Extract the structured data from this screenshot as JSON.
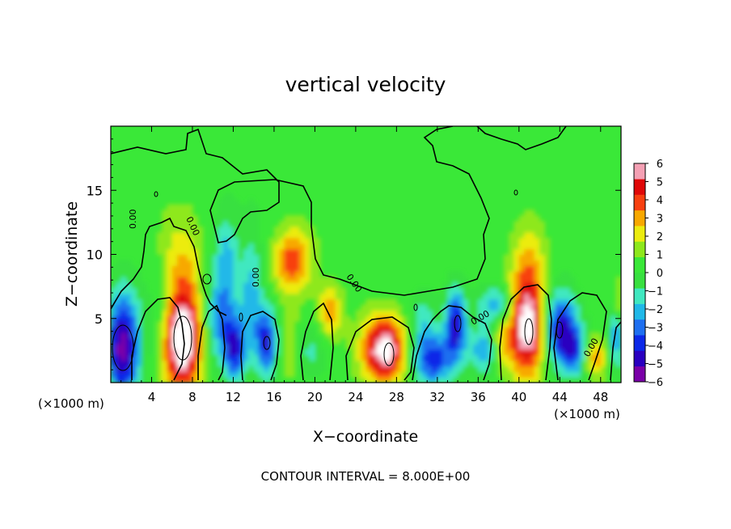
{
  "chart_data": {
    "type": "heatmap",
    "title": "vertical velocity",
    "xlabel": "X−coordinate",
    "ylabel": "Z−coordinate",
    "x_unit_left": "(×1000 m)",
    "x_unit_right": "(×1000 m)",
    "xlim": [
      0,
      50
    ],
    "ylim": [
      0,
      20
    ],
    "x_ticks": [
      4,
      8,
      12,
      16,
      20,
      24,
      28,
      32,
      36,
      40,
      44,
      48
    ],
    "y_ticks": [
      5,
      10,
      15
    ],
    "contour_label": "0.00",
    "footer": "CONTOUR INTERVAL = 8.000E+00",
    "colorbar": {
      "min": -6,
      "max": 6,
      "tick_labels": [
        "6",
        "5",
        "4",
        "3",
        "2",
        "1",
        "0",
        "−1",
        "−2",
        "−3",
        "−4",
        "−5",
        "−6"
      ],
      "colors": [
        "#7a00a8",
        "#2a00c0",
        "#0b28e8",
        "#1e6ff0",
        "#20b8e8",
        "#40e8c0",
        "#38e040",
        "#3ae838",
        "#8ee81c",
        "#ecec10",
        "#f8a800",
        "#f84010",
        "#e00808",
        "#f4a0b4"
      ]
    },
    "background_value": 0.4,
    "features": [
      {
        "x": 1.2,
        "z": 2.8,
        "rx": 1.6,
        "rz": 4.2,
        "w": -6.5
      },
      {
        "x": 7.0,
        "z": 3.4,
        "rx": 1.9,
        "rz": 4.0,
        "w": 7.5
      },
      {
        "x": 7.0,
        "z": 9.5,
        "rx": 2.0,
        "rz": 3.5,
        "w": 2.0
      },
      {
        "x": 10.8,
        "z": 5.0,
        "rx": 1.6,
        "rz": 3.5,
        "w": -3.5
      },
      {
        "x": 11.3,
        "z": 10.0,
        "rx": 1.2,
        "rz": 3.0,
        "w": -2.3
      },
      {
        "x": 12.2,
        "z": 2.6,
        "rx": 1.0,
        "rz": 2.4,
        "w": -4.5
      },
      {
        "x": 13.8,
        "z": 6.5,
        "rx": 1.0,
        "rz": 4.5,
        "w": -2.8
      },
      {
        "x": 15.3,
        "z": 3.2,
        "rx": 1.0,
        "rz": 2.6,
        "w": -5.0
      },
      {
        "x": 17.8,
        "z": 9.5,
        "rx": 1.8,
        "rz": 2.5,
        "w": 4.0
      },
      {
        "x": 17.5,
        "z": 3.0,
        "rx": 1.0,
        "rz": 2.5,
        "w": 1.8
      },
      {
        "x": 21.5,
        "z": 5.5,
        "rx": 1.2,
        "rz": 2.0,
        "w": 3.0
      },
      {
        "x": 19.5,
        "z": 2.5,
        "rx": 1.5,
        "rz": 2.0,
        "w": -1.5
      },
      {
        "x": 26.8,
        "z": 2.6,
        "rx": 2.2,
        "rz": 2.6,
        "w": 6.5
      },
      {
        "x": 30.5,
        "z": 4.8,
        "rx": 1.4,
        "rz": 2.0,
        "w": -2.2
      },
      {
        "x": 31.5,
        "z": 1.8,
        "rx": 2.0,
        "rz": 1.9,
        "w": -4.8
      },
      {
        "x": 33.8,
        "z": 4.6,
        "rx": 1.0,
        "rz": 2.6,
        "w": -5.5
      },
      {
        "x": 36.5,
        "z": 2.5,
        "rx": 1.4,
        "rz": 1.8,
        "w": -3.0
      },
      {
        "x": 37.8,
        "z": 6.0,
        "rx": 1.8,
        "rz": 1.5,
        "w": -3.0
      },
      {
        "x": 38.3,
        "z": 3.0,
        "rx": 1.0,
        "rz": 2.0,
        "w": 2.0
      },
      {
        "x": 40.8,
        "z": 4.6,
        "rx": 1.8,
        "rz": 4.0,
        "w": 7.0
      },
      {
        "x": 41.0,
        "z": 10.0,
        "rx": 1.5,
        "rz": 2.5,
        "w": 1.5
      },
      {
        "x": 44.0,
        "z": 4.2,
        "rx": 1.6,
        "rz": 2.8,
        "w": -5.5
      },
      {
        "x": 45.5,
        "z": 2.5,
        "rx": 1.2,
        "rz": 2.0,
        "w": -3.5
      },
      {
        "x": 47.5,
        "z": 2.0,
        "rx": 1.2,
        "rz": 1.6,
        "w": 3.0
      },
      {
        "x": 49.5,
        "z": 3.5,
        "rx": 0.8,
        "rz": 2.5,
        "w": -3.0
      },
      {
        "x": 49.8,
        "z": 6.5,
        "rx": 0.6,
        "rz": 1.5,
        "w": 2.0
      },
      {
        "x": 5.0,
        "z": 5.5,
        "rx": 1.5,
        "rz": 3.5,
        "w": -1.2
      }
    ]
  }
}
